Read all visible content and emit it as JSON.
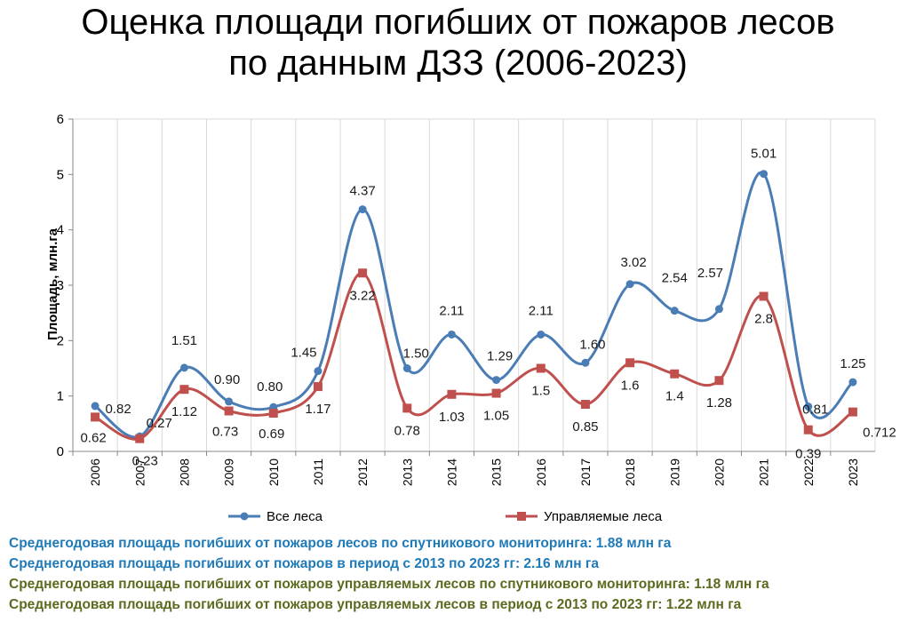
{
  "title_line1": "Оценка площади погибших от пожаров лесов",
  "title_line2": "по данным ДЗЗ (2006-2023)",
  "colors": {
    "series_all": "#4a7db5",
    "series_managed": "#c0504d",
    "grid": "#d9d9d9",
    "note_blue": "#1f7ab8",
    "note_green": "#5a6b1e"
  },
  "chart_data": {
    "type": "line",
    "title": "Оценка площади погибших от пожаров лесов по данным ДЗЗ (2006-2023)",
    "xlabel": "",
    "ylabel": "Площадь, млн.га",
    "ylim": [
      0,
      6
    ],
    "yticks": [
      "0",
      "1",
      "2",
      "3",
      "4",
      "5",
      "6"
    ],
    "grid": "vertical",
    "legend_position": "bottom",
    "categories": [
      "2006",
      "2007",
      "2008",
      "2009",
      "2010",
      "2011",
      "2012",
      "2013",
      "2014",
      "2015",
      "2016",
      "2017",
      "2018",
      "2019",
      "2020",
      "2021",
      "2022",
      "2023"
    ],
    "series": [
      {
        "name": "Все леса",
        "values": [
          0.82,
          0.27,
          1.51,
          0.9,
          0.8,
          1.45,
          4.37,
          1.5,
          2.11,
          1.29,
          2.11,
          1.6,
          3.02,
          2.54,
          2.57,
          5.01,
          0.81,
          1.25
        ],
        "labels": [
          "0.82",
          "0.27",
          "1.51",
          "0.90",
          "0.80",
          "1.45",
          "4.37",
          "1.50",
          "2.11",
          "1.29",
          "2.11",
          "1.60",
          "3.02",
          "2.54",
          "2.57",
          "5.01",
          "0.81",
          "1.25"
        ]
      },
      {
        "name": "Управляемые леса",
        "values": [
          0.62,
          0.23,
          1.12,
          0.73,
          0.69,
          1.17,
          3.22,
          0.78,
          1.03,
          1.05,
          1.5,
          0.85,
          1.6,
          1.4,
          1.28,
          2.8,
          0.39,
          0.712
        ],
        "labels": [
          "0.62",
          "0.23",
          "1.12",
          "0.73",
          "0.69",
          "1.17",
          "3.22",
          "0.78",
          "1.03",
          "1.05",
          "1.5",
          "0.85",
          "1.6",
          "1.4",
          "1.28",
          "2.8",
          "0.39",
          "0.712"
        ]
      }
    ]
  },
  "notes": [
    "Среднегодовая площадь погибших от пожаров лесов по спутникового мониторинга: 1.88 млн га",
    "Среднегодовая площадь погибших от пожаров в период с 2013 по 2023 гг: 2.16 млн га",
    "Среднегодовая площадь погибших от пожаров управляемых лесов по спутникового мониторинга: 1.18 млн га",
    "Среднегодовая площадь погибших от пожаров управляемых лесов в период с 2013 по 2023 гг: 1.22 млн га"
  ]
}
